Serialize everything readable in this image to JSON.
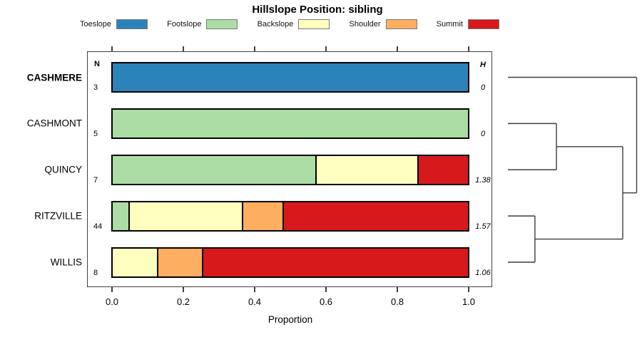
{
  "chart_data": {
    "type": "bar",
    "stacked": true,
    "orientation": "horizontal",
    "title": "Hillslope Position: sibling",
    "xlabel": "Proportion",
    "xlim": [
      0.0,
      1.0
    ],
    "xticks": [
      "0.0",
      "0.2",
      "0.4",
      "0.6",
      "0.8",
      "1.0"
    ],
    "grid": false,
    "legend_position": "top",
    "legend": [
      {
        "label": "Toeslope",
        "color": "#2B83BA"
      },
      {
        "label": "Footslope",
        "color": "#ABDDA4"
      },
      {
        "label": "Backslope",
        "color": "#FFFFBF"
      },
      {
        "label": "Shoulder",
        "color": "#FDAE61"
      },
      {
        "label": "Summit",
        "color": "#D7191C"
      }
    ],
    "columns": {
      "n_header": "N",
      "h_header": "H"
    },
    "rows": [
      {
        "label": "CASHMERE",
        "bold": true,
        "n": 3,
        "h": "0",
        "segments": [
          {
            "cat": "Toeslope",
            "value": 1.0
          }
        ]
      },
      {
        "label": "CASHMONT",
        "bold": false,
        "n": 5,
        "h": "0",
        "segments": [
          {
            "cat": "Footslope",
            "value": 1.0
          }
        ]
      },
      {
        "label": "QUINCY",
        "bold": false,
        "n": 7,
        "h": "1.38",
        "segments": [
          {
            "cat": "Footslope",
            "value": 0.571
          },
          {
            "cat": "Backslope",
            "value": 0.286
          },
          {
            "cat": "Summit",
            "value": 0.143
          }
        ]
      },
      {
        "label": "RITZVILLE",
        "bold": false,
        "n": 44,
        "h": "1.57",
        "segments": [
          {
            "cat": "Footslope",
            "value": 0.045
          },
          {
            "cat": "Backslope",
            "value": 0.318
          },
          {
            "cat": "Shoulder",
            "value": 0.114
          },
          {
            "cat": "Summit",
            "value": 0.523
          }
        ]
      },
      {
        "label": "WILLIS",
        "bold": false,
        "n": 8,
        "h": "1.06",
        "segments": [
          {
            "cat": "Backslope",
            "value": 0.125
          },
          {
            "cat": "Shoulder",
            "value": 0.125
          },
          {
            "cat": "Summit",
            "value": 0.75
          }
        ]
      }
    ],
    "dendrogram": {
      "leaf_order": [
        "CASHMERE",
        "CASHMONT",
        "QUINCY",
        "RITZVILLE",
        "WILLIS"
      ],
      "merges": [
        {
          "a": "CASHMONT",
          "b": "QUINCY",
          "h": 0.377
        },
        {
          "a": "RITZVILLE",
          "b": "WILLIS",
          "h": 0.21
        },
        {
          "a": "m0",
          "b": "m1",
          "h": 0.892
        },
        {
          "a": "CASHMERE",
          "b": "m2",
          "h": 1.0
        }
      ]
    }
  }
}
